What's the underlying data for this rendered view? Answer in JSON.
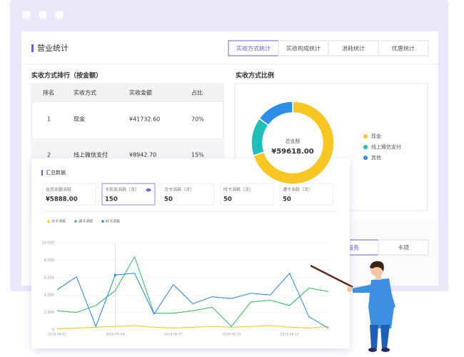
{
  "header": {
    "title": "营业统计"
  },
  "tabs": [
    "实收方式统计",
    "实收构成统计",
    "消耗统计",
    "优惠统计"
  ],
  "ranking": {
    "title": "实收方式排行（按金额）",
    "columns": [
      "排名",
      "实收方式",
      "实收金额",
      "占比"
    ],
    "rows": [
      [
        "1",
        "现金",
        "¥41732.60",
        "70%"
      ],
      [
        "2",
        "线上微信支付",
        "¥8942.70",
        "15%"
      ]
    ]
  },
  "ratio": {
    "title": "实收方式比例",
    "type": "pie",
    "center_label": "总金额",
    "center_value": "¥59618.00",
    "categories": [
      "现金",
      "线上微信支付",
      "其他"
    ],
    "values": [
      70,
      15,
      15
    ],
    "colors": [
      "#f7c622",
      "#1dbfb8",
      "#2f8fe8"
    ]
  },
  "bottom_tabs": [
    "服务",
    "卡项"
  ],
  "summary": {
    "title": "汇总数据",
    "stats": [
      {
        "label": "会员余额消耗",
        "value": "¥5888.00"
      },
      {
        "label": "卡项总消耗（次）",
        "value": "150"
      },
      {
        "label": "次卡消耗（次）",
        "value": "50"
      },
      {
        "label": "时卡消耗（次）",
        "value": "50"
      },
      {
        "label": "通卡消耗（次）",
        "value": "50"
      }
    ],
    "chart": {
      "type": "line",
      "x": [
        "2018-06-01",
        null,
        null,
        "2018-06-04",
        null,
        null,
        "2018-06-07",
        null,
        null,
        "2018-06-10",
        null,
        null,
        "2018-06-13",
        null,
        null
      ],
      "series": [
        {
          "name": "次卡消耗",
          "color": "#f7c622",
          "values": [
            100,
            200,
            300,
            400,
            500,
            300,
            200,
            300,
            400,
            300,
            400,
            500,
            300,
            200,
            400
          ]
        },
        {
          "name": "通卡消耗",
          "color": "#3cbf6a",
          "values": [
            2200,
            2000,
            2800,
            4500,
            8400,
            1900,
            1900,
            2200,
            2600,
            400,
            3200,
            3400,
            2800,
            4800,
            4400
          ]
        },
        {
          "name": "时卡消耗",
          "color": "#2f8fe8",
          "values": [
            4600,
            6100,
            400,
            6300,
            6500,
            1800,
            5200,
            3000,
            3800,
            3600,
            4200,
            4000,
            6500,
            1500,
            200
          ]
        }
      ],
      "ylim": [
        0,
        10000
      ],
      "yticks": [
        0,
        {
          "value": 2000,
          "label": "2,000"
        },
        {
          "value": 4000,
          "label": "4,000"
        },
        {
          "value": 6000,
          "label": "6,000"
        },
        {
          "value": 8000,
          "label": "8,000"
        },
        {
          "value": 10000,
          "label": "10,000"
        }
      ],
      "grid": true
    }
  }
}
